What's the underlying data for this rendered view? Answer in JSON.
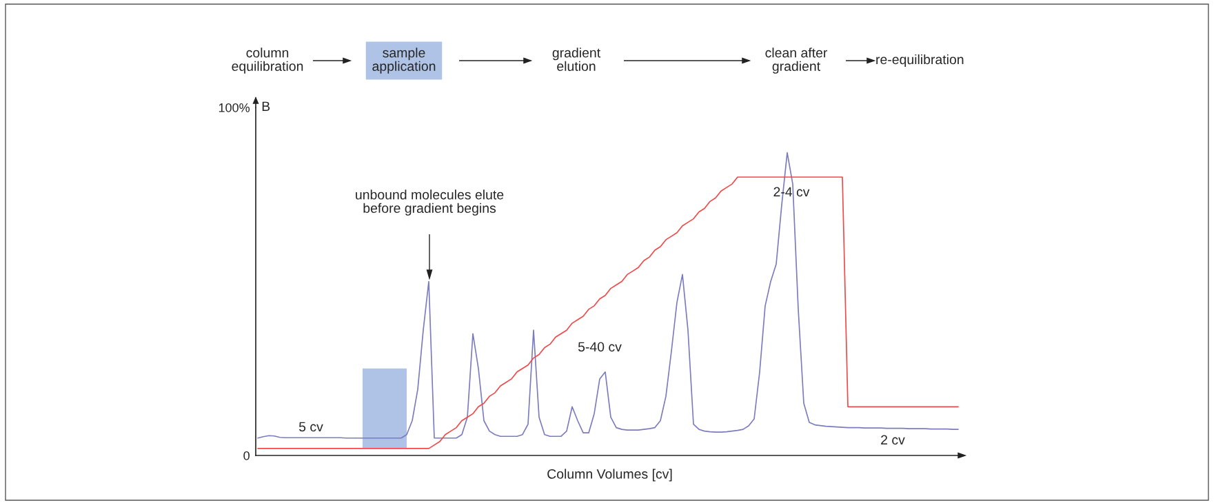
{
  "chart_data": {
    "type": "line",
    "xlabel": "Column Volumes [cv]",
    "ylabel": "B",
    "categories": [
      null,
      null,
      null,
      null,
      null,
      null,
      null,
      null,
      null,
      null,
      null,
      null,
      null,
      null,
      null,
      null,
      null,
      null,
      null,
      null,
      null,
      null,
      null,
      null,
      null,
      null,
      null,
      null,
      null,
      null,
      null,
      null,
      null,
      null,
      null,
      null,
      null,
      null,
      null,
      null,
      null,
      null,
      null,
      null,
      null,
      null,
      null,
      null,
      null,
      null,
      null,
      null,
      null,
      null,
      null,
      null,
      null,
      null,
      null,
      null,
      null,
      null,
      null,
      null,
      null,
      null,
      null,
      null,
      null,
      null,
      null,
      null,
      null,
      null,
      null,
      null,
      null,
      null,
      null,
      null,
      null,
      null,
      null,
      null,
      null,
      null,
      null,
      null,
      null,
      null,
      null,
      null,
      null,
      null,
      null,
      null,
      null,
      null,
      null,
      null,
      null,
      null,
      null,
      null,
      null,
      null,
      null,
      null,
      null,
      null,
      null,
      null,
      null,
      null,
      null,
      null,
      null,
      null,
      null,
      null,
      null,
      null,
      null,
      null,
      null,
      null,
      null,
      null
    ],
    "series": [
      {
        "color": "#7b7bc0",
        "values": [
          5,
          5.4,
          5.7,
          5.6,
          5.2,
          5.1,
          5.1,
          5.1,
          5.1,
          5.1,
          5.1,
          5.1,
          5.1,
          5.1,
          5.1,
          5.1,
          5,
          5,
          5,
          5,
          5,
          5,
          5,
          5,
          5,
          5,
          5,
          6,
          10,
          19,
          36,
          50,
          5,
          5,
          5,
          5,
          5,
          6,
          11,
          35,
          25,
          10,
          7,
          6,
          5.5,
          5.5,
          5.5,
          5.5,
          6,
          9,
          36,
          11,
          6,
          5.5,
          5.5,
          5.5,
          7,
          14,
          10,
          6.5,
          6.5,
          12,
          22,
          24,
          11,
          8,
          7.5,
          7.3,
          7.3,
          7.3,
          7.5,
          7.7,
          8,
          10,
          17,
          30,
          44,
          52,
          36,
          9,
          7.5,
          7,
          6.8,
          6.7,
          6.7,
          6.8,
          7,
          7.2,
          7.5,
          8.5,
          10.5,
          24,
          43,
          50,
          55,
          72,
          87,
          78,
          42,
          15,
          9.5,
          8.8,
          8.6,
          8.4,
          8.3,
          8.2,
          8.1,
          8,
          8,
          8,
          7.9,
          7.9,
          7.9,
          7.9,
          7.8,
          7.8,
          7.8,
          7.8,
          7.7,
          7.7,
          7.7,
          7.7,
          7.6,
          7.6,
          7.6,
          7.6,
          7.5,
          7.5
        ]
      },
      {
        "color": "#f04848",
        "values": [
          2,
          2,
          2,
          2,
          2,
          2,
          2,
          2,
          2,
          2,
          2,
          2,
          2,
          2,
          2,
          2,
          2,
          2,
          2,
          2,
          2,
          2,
          2,
          2,
          2,
          2,
          2,
          2,
          2,
          2,
          2,
          2,
          3,
          4,
          6,
          7,
          8,
          10,
          11,
          12,
          14,
          15,
          17,
          18,
          20,
          21,
          22,
          24,
          25,
          26,
          28,
          29,
          31,
          32,
          34,
          35,
          36,
          38,
          39,
          40,
          42,
          43,
          45,
          46,
          48,
          49,
          50,
          52,
          53,
          54,
          56,
          57,
          59,
          60,
          62,
          63,
          64,
          66,
          67,
          68,
          70,
          71,
          73,
          74,
          76,
          77,
          78,
          80,
          80,
          80,
          80,
          80,
          80,
          80,
          80,
          80,
          80,
          80,
          80,
          80,
          80,
          80,
          80,
          80,
          80,
          80,
          80,
          14,
          14,
          14,
          14,
          14,
          14,
          14,
          14,
          14,
          14,
          14,
          14,
          14,
          14,
          14,
          14,
          14,
          14,
          14,
          14,
          14
        ]
      }
    ],
    "ylim": [
      0,
      100
    ],
    "yticks": [
      {
        "value": 0,
        "label": "0"
      },
      {
        "value": 100,
        "label": "100%"
      }
    ],
    "tick_labels": "y",
    "annotations": [
      "column\nequilibration",
      "sample\napplication",
      "gradient\nelution",
      "clean after\ngradient",
      "re-equilibration",
      "unbound molecules elute\nbefore gradient begins",
      "5 cv",
      "5-40 cv",
      "2-4 cv",
      "2 cv"
    ]
  }
}
